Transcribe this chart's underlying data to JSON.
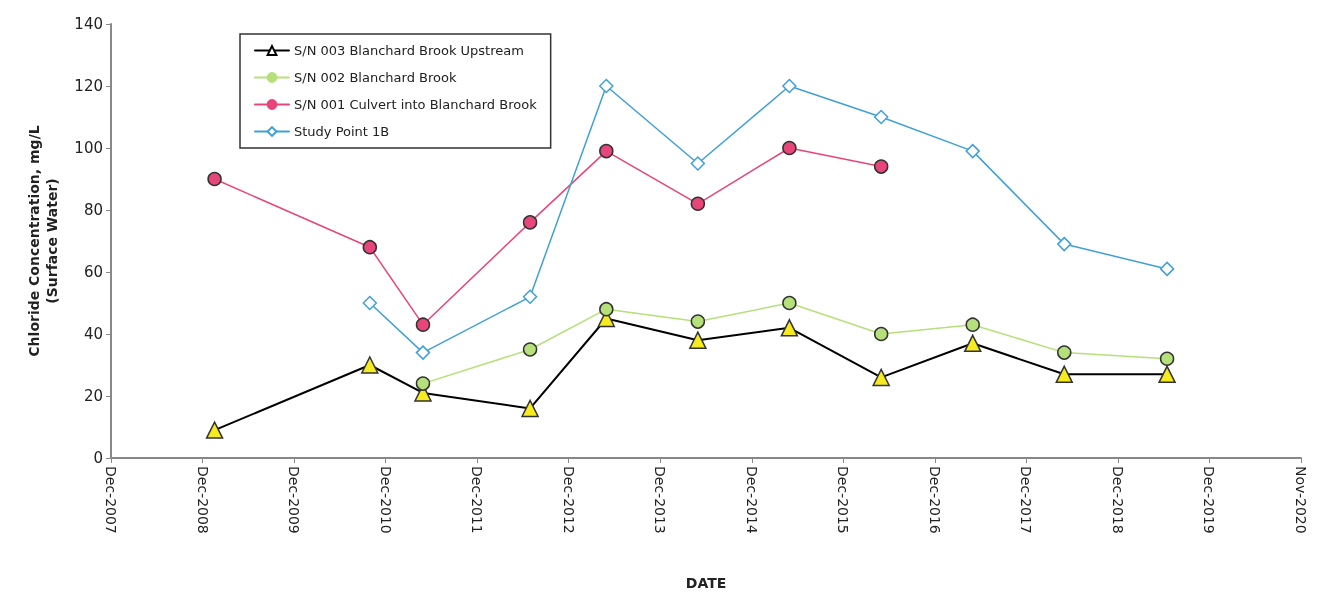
{
  "chart_data": {
    "type": "line",
    "xlabel": "DATE",
    "ylabel": "Chloride Concentration, mg/L\n(Surface Water)",
    "x": [
      "2009-01-20",
      "2010-10-01",
      "2011-05-01",
      "2012-07-01",
      "2013-05-01",
      "2014-05-01",
      "2015-05-01",
      "2016-05-01",
      "2017-05-01",
      "2018-05-01",
      "2019-06-15"
    ],
    "series": [
      {
        "name": "S/N 003 Blanchard Brook Upstream",
        "color": "#000000",
        "marker": "triangle",
        "values": [
          9,
          30,
          21,
          16,
          45,
          38,
          42,
          26,
          37,
          27,
          27
        ]
      },
      {
        "name": "S/N 002 Blanchard Brook",
        "color": "#b5e07a",
        "marker": "circle",
        "values": [
          null,
          null,
          24,
          35,
          48,
          44,
          50,
          40,
          43,
          34,
          32
        ]
      },
      {
        "name": "S/N 001 Culvert into Blanchard Brook",
        "color": "#e8457a",
        "marker": "circle",
        "values": [
          90,
          68,
          43,
          76,
          99,
          82,
          100,
          94,
          null,
          null,
          null
        ]
      },
      {
        "name": "Study Point 1B",
        "color": "#3fa0d8",
        "marker": "diamond",
        "values": [
          null,
          50,
          34,
          52,
          120,
          95,
          120,
          110,
          99,
          69,
          61
        ]
      }
    ],
    "xlim": [
      "2007-12-04",
      "2020-11-30"
    ],
    "xticks": [
      {
        "value": "2007-12-04",
        "label": "Dec-2007"
      },
      {
        "value": "2008-12-03",
        "label": "Dec-2008"
      },
      {
        "value": "2009-12-03",
        "label": "Dec-2009"
      },
      {
        "value": "2010-12-03",
        "label": "Dec-2010"
      },
      {
        "value": "2011-12-03",
        "label": "Dec-2011"
      },
      {
        "value": "2012-12-02",
        "label": "Dec-2012"
      },
      {
        "value": "2013-12-02",
        "label": "Dec-2013"
      },
      {
        "value": "2014-12-02",
        "label": "Dec-2014"
      },
      {
        "value": "2015-12-02",
        "label": "Dec-2015"
      },
      {
        "value": "2016-12-01",
        "label": "Dec-2016"
      },
      {
        "value": "2017-12-01",
        "label": "Dec-2017"
      },
      {
        "value": "2018-12-01",
        "label": "Dec-2018"
      },
      {
        "value": "2019-12-01",
        "label": "Dec-2019"
      },
      {
        "value": "2020-11-30",
        "label": "Nov-2020"
      }
    ],
    "ylim": [
      0,
      140
    ],
    "yticks": [
      0,
      20,
      40,
      60,
      80,
      100,
      120,
      140
    ],
    "legend": "top left",
    "grid": false
  }
}
